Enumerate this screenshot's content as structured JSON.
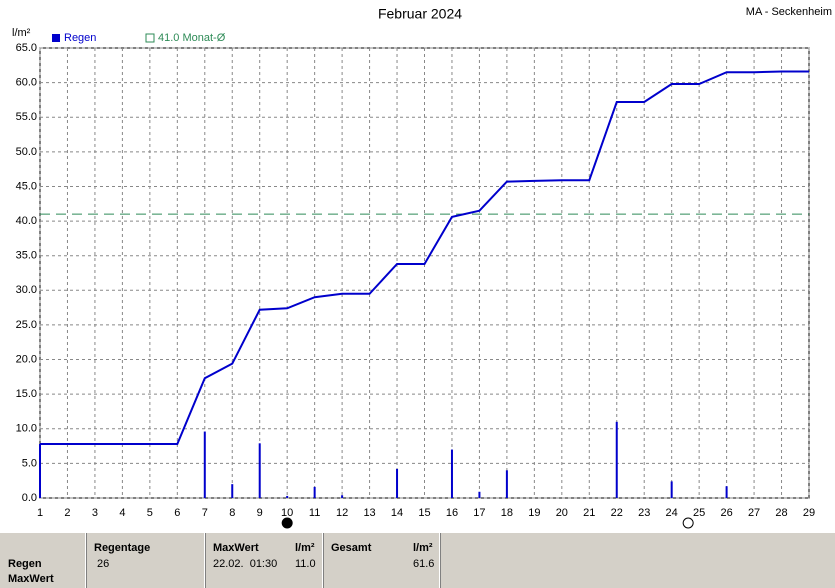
{
  "chart_data": {
    "type": "combo",
    "title": "Februar 2024",
    "station": "MA - Seckenheim",
    "y_label": "l/m²",
    "x": [
      1,
      2,
      3,
      4,
      5,
      6,
      7,
      8,
      9,
      10,
      11,
      12,
      13,
      14,
      15,
      16,
      17,
      18,
      19,
      20,
      21,
      22,
      23,
      24,
      25,
      26,
      27,
      28,
      29
    ],
    "series": [
      {
        "name": "Regen",
        "color": "#0000cc",
        "values": [
          7.8,
          0,
          0,
          0,
          0,
          0,
          9.6,
          2.0,
          7.9,
          0.3,
          1.6,
          0.4,
          0,
          4.2,
          0,
          7.0,
          0.9,
          4.0,
          0,
          0,
          0,
          11.0,
          0,
          2.4,
          0,
          1.7,
          0,
          0,
          0
        ]
      }
    ],
    "cumulative": {
      "color": "#0000cc",
      "values": [
        7.8,
        7.8,
        7.8,
        7.8,
        7.8,
        7.8,
        17.3,
        19.4,
        27.2,
        27.4,
        29.0,
        29.5,
        29.5,
        33.8,
        33.8,
        40.6,
        41.5,
        45.7,
        45.8,
        45.9,
        45.9,
        57.2,
        57.2,
        59.8,
        59.8,
        61.5,
        61.5,
        61.6,
        61.6
      ]
    },
    "reference": {
      "label": "41.0 Monat-Ø",
      "value": 41.0,
      "color": "#2e8b57"
    },
    "moon_phases": [
      {
        "x": 10,
        "filled": true
      },
      {
        "x": 24.6,
        "filled": false
      }
    ],
    "xlim": [
      1,
      29
    ],
    "xticks": [
      1,
      2,
      3,
      4,
      5,
      6,
      7,
      8,
      9,
      10,
      11,
      12,
      13,
      14,
      15,
      16,
      17,
      18,
      19,
      20,
      21,
      22,
      23,
      24,
      25,
      26,
      27,
      28,
      29
    ],
    "ylim": [
      0,
      65
    ],
    "yticks": [
      {
        "value": 0,
        "label": "0.0"
      },
      {
        "value": 5,
        "label": "5.0"
      },
      {
        "value": 10,
        "label": "10.0"
      },
      {
        "value": 15,
        "label": "15.0"
      },
      {
        "value": 20,
        "label": "20.0"
      },
      {
        "value": 25,
        "label": "25.0"
      },
      {
        "value": 30,
        "label": "30.0"
      },
      {
        "value": 35,
        "label": "35.0"
      },
      {
        "value": 40,
        "label": "40.0"
      },
      {
        "value": 45,
        "label": "45.0"
      },
      {
        "value": 50,
        "label": "50.0"
      },
      {
        "value": 55,
        "label": "55.0"
      },
      {
        "value": 60,
        "label": "60.0"
      },
      {
        "value": 65,
        "label": "65.0"
      }
    ],
    "grid": true
  },
  "stats": {
    "row_labels": [
      "Regen",
      "MaxWert"
    ],
    "headers": [
      "Regentage",
      "MaxWert",
      "l/m²",
      "Gesamt",
      "l/m²"
    ],
    "values": [
      "26",
      "22.02.  01:30",
      "11.0",
      "61.6"
    ]
  }
}
